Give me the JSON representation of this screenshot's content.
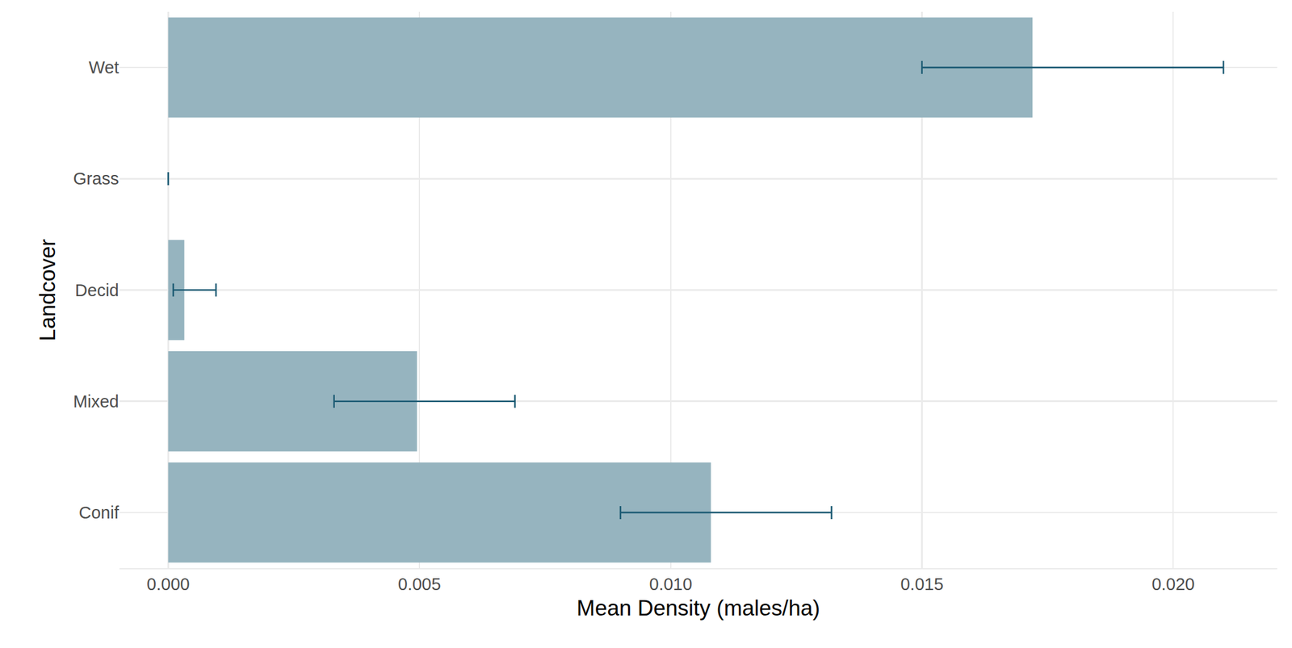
{
  "chart_data": {
    "type": "bar",
    "orientation": "horizontal",
    "x_label": "Mean Density (males/ha)",
    "y_label": "Landcover",
    "categories": [
      "Conif",
      "Mixed",
      "Decid",
      "Grass",
      "Wet"
    ],
    "values": [
      0.0108,
      0.00495,
      0.00032,
      0.0,
      0.0172
    ],
    "error_low": [
      0.009,
      0.0033,
      0.0001,
      0.0,
      0.015
    ],
    "error_high": [
      0.0132,
      0.0069,
      0.00095,
      0.0,
      0.021
    ],
    "color": "#96b4bf",
    "error_color": "#1b5a73",
    "xlim": [
      -0.00097,
      0.02207
    ],
    "xticks": [
      {
        "value": 0,
        "label": "0.000"
      },
      {
        "value": 0.005,
        "label": "0.005"
      },
      {
        "value": 0.01,
        "label": "0.010"
      },
      {
        "value": 0.015,
        "label": "0.015"
      },
      {
        "value": 0.02,
        "label": "0.020"
      }
    ],
    "grid": true
  }
}
